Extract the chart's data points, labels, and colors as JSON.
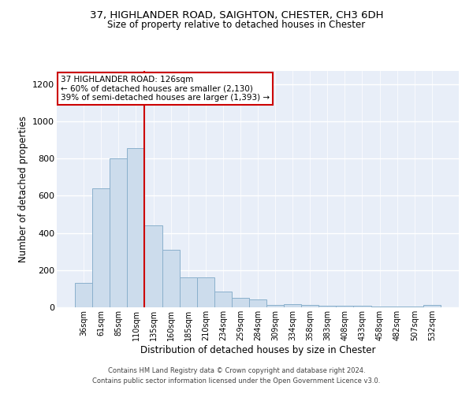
{
  "title1": "37, HIGHLANDER ROAD, SAIGHTON, CHESTER, CH3 6DH",
  "title2": "Size of property relative to detached houses in Chester",
  "xlabel": "Distribution of detached houses by size in Chester",
  "ylabel": "Number of detached properties",
  "categories": [
    "36sqm",
    "61sqm",
    "85sqm",
    "110sqm",
    "135sqm",
    "160sqm",
    "185sqm",
    "210sqm",
    "234sqm",
    "259sqm",
    "284sqm",
    "309sqm",
    "334sqm",
    "358sqm",
    "383sqm",
    "408sqm",
    "433sqm",
    "458sqm",
    "482sqm",
    "507sqm",
    "532sqm"
  ],
  "values": [
    130,
    640,
    800,
    855,
    440,
    310,
    160,
    160,
    85,
    50,
    42,
    12,
    17,
    14,
    10,
    8,
    7,
    5,
    6,
    4,
    11
  ],
  "bar_color": "#ccdcec",
  "bar_edge_color": "#8ab0cc",
  "vline_x_idx": 3.5,
  "vline_color": "#cc0000",
  "ylim": [
    0,
    1270
  ],
  "yticks": [
    0,
    200,
    400,
    600,
    800,
    1000,
    1200
  ],
  "annotation_title": "37 HIGHLANDER ROAD: 126sqm",
  "annotation_line1": "← 60% of detached houses are smaller (2,130)",
  "annotation_line2": "39% of semi-detached houses are larger (1,393) →",
  "annotation_box_facecolor": "#ffffff",
  "annotation_box_edgecolor": "#cc0000",
  "footer_line1": "Contains HM Land Registry data © Crown copyright and database right 2024.",
  "footer_line2": "Contains public sector information licensed under the Open Government Licence v3.0.",
  "background_color": "#e8eef8"
}
